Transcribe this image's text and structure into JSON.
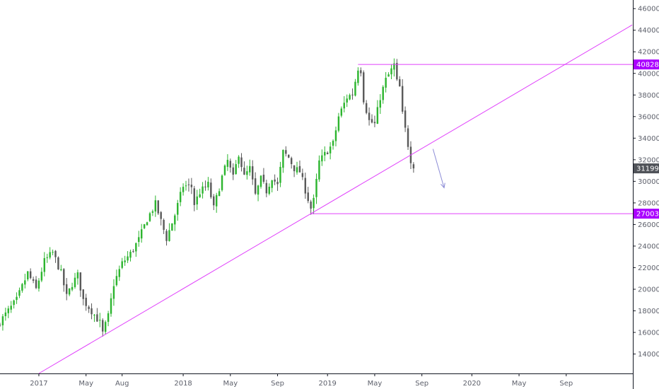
{
  "colors": {
    "background": "#ffffff",
    "axis": "#131722",
    "up_candle": "#2db52f",
    "down_candle": "#5a5a5a",
    "drawing_line": "#e040fb",
    "level_badge": "#aa00ff",
    "price_badge": "#505359",
    "arrow": "#8c8cd6"
  },
  "chart_data": {
    "type": "candlestick",
    "title": "",
    "xlabel": "",
    "ylabel": "",
    "ylim": [
      12200,
      46800
    ],
    "y_ticks": [
      "14000",
      "16000",
      "18000",
      "20000",
      "22000",
      "24000",
      "26000",
      "28000",
      "30000",
      "32000",
      "34000",
      "36000",
      "38000",
      "40000",
      "42000",
      "44000",
      "46000"
    ],
    "x_ticks": [
      "2017",
      "May",
      "Aug",
      "2018",
      "May",
      "Sep",
      "2019",
      "May",
      "Sep",
      "2020",
      "May",
      "Sep"
    ],
    "x_tick_weeks": [
      0,
      17,
      30,
      52,
      69,
      86,
      104,
      121,
      138,
      156,
      173,
      190
    ],
    "week_range": [
      -14,
      214
    ],
    "levels": [
      {
        "label": "40828",
        "value": 40828,
        "from_week": 115
      },
      {
        "label": "27003",
        "value": 27003,
        "from_week": 98
      }
    ],
    "trendline": {
      "points": [
        [
          0,
          12200
        ],
        [
          98,
          27003
        ]
      ]
    },
    "last_price": {
      "label": "31199",
      "value": 31199
    },
    "arrow": {
      "from": [
        [
          142,
          33000
        ]
      ],
      "to": [
        [
          146,
          29400
        ]
      ]
    },
    "anchors": [
      [
        -14,
        17000
      ],
      [
        -8,
        19000
      ],
      [
        -4,
        21500
      ],
      [
        -1,
        20000
      ],
      [
        2,
        22600
      ],
      [
        5,
        23400
      ],
      [
        8,
        21500
      ],
      [
        10,
        19300
      ],
      [
        12,
        20500
      ],
      [
        14,
        21300
      ],
      [
        16,
        19000
      ],
      [
        19,
        18000
      ],
      [
        22,
        16900
      ],
      [
        23,
        15900
      ],
      [
        25,
        17500
      ],
      [
        27,
        20500
      ],
      [
        30,
        22400
      ],
      [
        33,
        23300
      ],
      [
        36,
        24600
      ],
      [
        39,
        26500
      ],
      [
        42,
        27900
      ],
      [
        44,
        26300
      ],
      [
        46,
        24700
      ],
      [
        49,
        26900
      ],
      [
        52,
        29600
      ],
      [
        55,
        29500
      ],
      [
        56,
        27900
      ],
      [
        58,
        29000
      ],
      [
        61,
        29700
      ],
      [
        63,
        27500
      ],
      [
        66,
        30400
      ],
      [
        68,
        31900
      ],
      [
        70,
        30300
      ],
      [
        72,
        32600
      ],
      [
        74,
        30400
      ],
      [
        76,
        31200
      ],
      [
        78,
        28700
      ],
      [
        80,
        30200
      ],
      [
        82,
        29100
      ],
      [
        84,
        30400
      ],
      [
        86,
        29600
      ],
      [
        88,
        32700
      ],
      [
        90,
        32200
      ],
      [
        92,
        31200
      ],
      [
        94,
        30900
      ],
      [
        96,
        29200
      ],
      [
        98,
        27500
      ],
      [
        99,
        28200
      ],
      [
        101,
        31800
      ],
      [
        103,
        32500
      ],
      [
        106,
        33500
      ],
      [
        108,
        36000
      ],
      [
        111,
        37800
      ],
      [
        113,
        38100
      ],
      [
        115,
        40500
      ],
      [
        116,
        40300
      ],
      [
        117,
        37600
      ],
      [
        119,
        35600
      ],
      [
        121,
        35300
      ],
      [
        123,
        37800
      ],
      [
        125,
        39400
      ],
      [
        127,
        40300
      ],
      [
        128,
        40800
      ],
      [
        129,
        39200
      ],
      [
        130,
        38700
      ],
      [
        131,
        36200
      ],
      [
        133,
        33400
      ],
      [
        134,
        32000
      ],
      [
        135,
        31199
      ]
    ]
  }
}
